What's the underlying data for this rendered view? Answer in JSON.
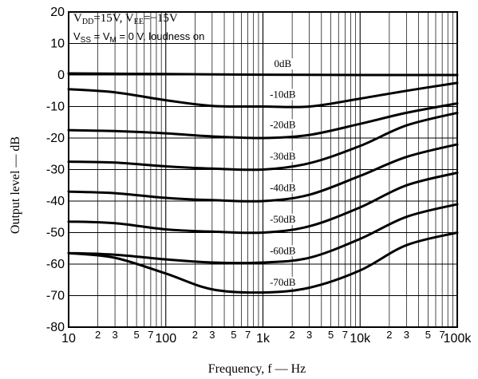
{
  "chart_data": {
    "type": "line",
    "xlabel": "Frequency, f — Hz",
    "ylabel": "Output level — dB",
    "x_scale": "log",
    "xlim": [
      10,
      100000
    ],
    "ylim": [
      -80,
      20
    ],
    "y_ticks": [
      20,
      10,
      0,
      -10,
      -20,
      -30,
      -40,
      -50,
      -60,
      -70,
      -80
    ],
    "x_major_ticks": [
      {
        "value": 10,
        "label": "10"
      },
      {
        "value": 100,
        "label": "100"
      },
      {
        "value": 1000,
        "label": "1k"
      },
      {
        "value": 10000,
        "label": "10k"
      },
      {
        "value": 100000,
        "label": "100k"
      }
    ],
    "x_minor_ticks": [
      {
        "value": 20,
        "label": "2"
      },
      {
        "value": 30,
        "label": "3"
      },
      {
        "value": 50,
        "label": "5"
      },
      {
        "value": 70,
        "label": "7"
      },
      {
        "value": 200,
        "label": "2"
      },
      {
        "value": 300,
        "label": "3"
      },
      {
        "value": 500,
        "label": "5"
      },
      {
        "value": 700,
        "label": "7"
      },
      {
        "value": 2000,
        "label": "2"
      },
      {
        "value": 3000,
        "label": "3"
      },
      {
        "value": 5000,
        "label": "5"
      },
      {
        "value": 7000,
        "label": "7"
      },
      {
        "value": 20000,
        "label": "2"
      },
      {
        "value": 30000,
        "label": "3"
      },
      {
        "value": 50000,
        "label": "5"
      },
      {
        "value": 70000,
        "label": "7"
      }
    ],
    "grid": true,
    "annotations": {
      "line1": {
        "v1": "V",
        "s1": "DD",
        "t1": "=15V, V",
        "s2": "EE",
        "t2": "=−15V"
      },
      "line2": {
        "v1": "V",
        "s1": "SS",
        "t1": " = V",
        "s2": "M",
        "t2": " = 0 V, loudness on"
      }
    },
    "series": [
      {
        "label": "0dB",
        "label_at": [
          1600,
          2.5
        ],
        "points": [
          [
            10,
            0.5
          ],
          [
            100,
            0.3
          ],
          [
            1000,
            0.1
          ],
          [
            10000,
            0
          ],
          [
            100000,
            0
          ]
        ]
      },
      {
        "label": "-10dB",
        "label_at": [
          1600,
          -7.2
        ],
        "points": [
          [
            10,
            -4.5
          ],
          [
            30,
            -5.5
          ],
          [
            100,
            -8
          ],
          [
            300,
            -9.8
          ],
          [
            1000,
            -10
          ],
          [
            3000,
            -10
          ],
          [
            10000,
            -7.5
          ],
          [
            30000,
            -5
          ],
          [
            100000,
            -2.5
          ]
        ]
      },
      {
        "label": "-20dB",
        "label_at": [
          1600,
          -16.8
        ],
        "points": [
          [
            10,
            -17.5
          ],
          [
            30,
            -17.8
          ],
          [
            100,
            -18.5
          ],
          [
            300,
            -19.5
          ],
          [
            1000,
            -20
          ],
          [
            3000,
            -19
          ],
          [
            10000,
            -15.5
          ],
          [
            30000,
            -12
          ],
          [
            100000,
            -9
          ]
        ]
      },
      {
        "label": "-30dB",
        "label_at": [
          1600,
          -26.8
        ],
        "points": [
          [
            10,
            -27.5
          ],
          [
            30,
            -27.8
          ],
          [
            100,
            -29
          ],
          [
            300,
            -29.7
          ],
          [
            1000,
            -30
          ],
          [
            3000,
            -28
          ],
          [
            10000,
            -22.5
          ],
          [
            30000,
            -16
          ],
          [
            100000,
            -12
          ]
        ]
      },
      {
        "label": "-40dB",
        "label_at": [
          1600,
          -36.8
        ],
        "points": [
          [
            10,
            -37
          ],
          [
            30,
            -37.5
          ],
          [
            100,
            -39
          ],
          [
            300,
            -39.7
          ],
          [
            1000,
            -40
          ],
          [
            3000,
            -38
          ],
          [
            10000,
            -32
          ],
          [
            30000,
            -26
          ],
          [
            100000,
            -22
          ]
        ]
      },
      {
        "label": "-50dB",
        "label_at": [
          1600,
          -46.8
        ],
        "points": [
          [
            10,
            -46.5
          ],
          [
            30,
            -47
          ],
          [
            100,
            -49
          ],
          [
            300,
            -49.7
          ],
          [
            1000,
            -50
          ],
          [
            3000,
            -48
          ],
          [
            10000,
            -42
          ],
          [
            30000,
            -35
          ],
          [
            100000,
            -31
          ]
        ]
      },
      {
        "label": "-60dB",
        "label_at": [
          1600,
          -56.8
        ],
        "points": [
          [
            10,
            -56.5
          ],
          [
            30,
            -57
          ],
          [
            100,
            -58.5
          ],
          [
            300,
            -59.5
          ],
          [
            1000,
            -59.5
          ],
          [
            3000,
            -58
          ],
          [
            10000,
            -52
          ],
          [
            30000,
            -45
          ],
          [
            100000,
            -41
          ]
        ]
      },
      {
        "label": "-70dB",
        "label_at": [
          1600,
          -66.8
        ],
        "points": [
          [
            10,
            -56.5
          ],
          [
            30,
            -58
          ],
          [
            100,
            -63
          ],
          [
            300,
            -68
          ],
          [
            1000,
            -69
          ],
          [
            3000,
            -67.5
          ],
          [
            10000,
            -62
          ],
          [
            30000,
            -54
          ],
          [
            100000,
            -50
          ]
        ]
      }
    ]
  }
}
